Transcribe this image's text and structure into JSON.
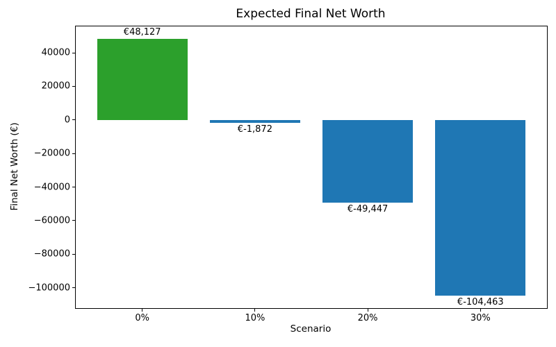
{
  "figure": {
    "background": "#ffffff",
    "spine_color": "#000000",
    "text_color": "#000000"
  },
  "chart_data": {
    "type": "bar",
    "title": "Expected Final Net Worth",
    "xlabel": "Scenario",
    "ylabel": "Final Net Worth (€)",
    "categories": [
      "0%",
      "10%",
      "20%",
      "30%"
    ],
    "values": [
      48127,
      -1872,
      -49447,
      -104463
    ],
    "value_labels": [
      "€48,127",
      "€-1,872",
      "€-49,447",
      "€-104,463"
    ],
    "bar_colors": [
      "#2ca02c",
      "#1f77b4",
      "#1f77b4",
      "#1f77b4"
    ],
    "positive_color": "#2ca02c",
    "negative_color": "#1f77b4",
    "ylim": [
      -112093,
      55757
    ],
    "xlim": [
      -0.59,
      3.59
    ],
    "yticks": [
      40000,
      20000,
      0,
      -20000,
      -40000,
      -60000,
      -80000,
      -100000
    ],
    "ytick_labels": [
      "40000",
      "20000",
      "0",
      "−20000",
      "−40000",
      "−60000",
      "−80000",
      "−100000"
    ],
    "bar_width_ratio": 0.8,
    "grid": false,
    "legend": "none"
  }
}
